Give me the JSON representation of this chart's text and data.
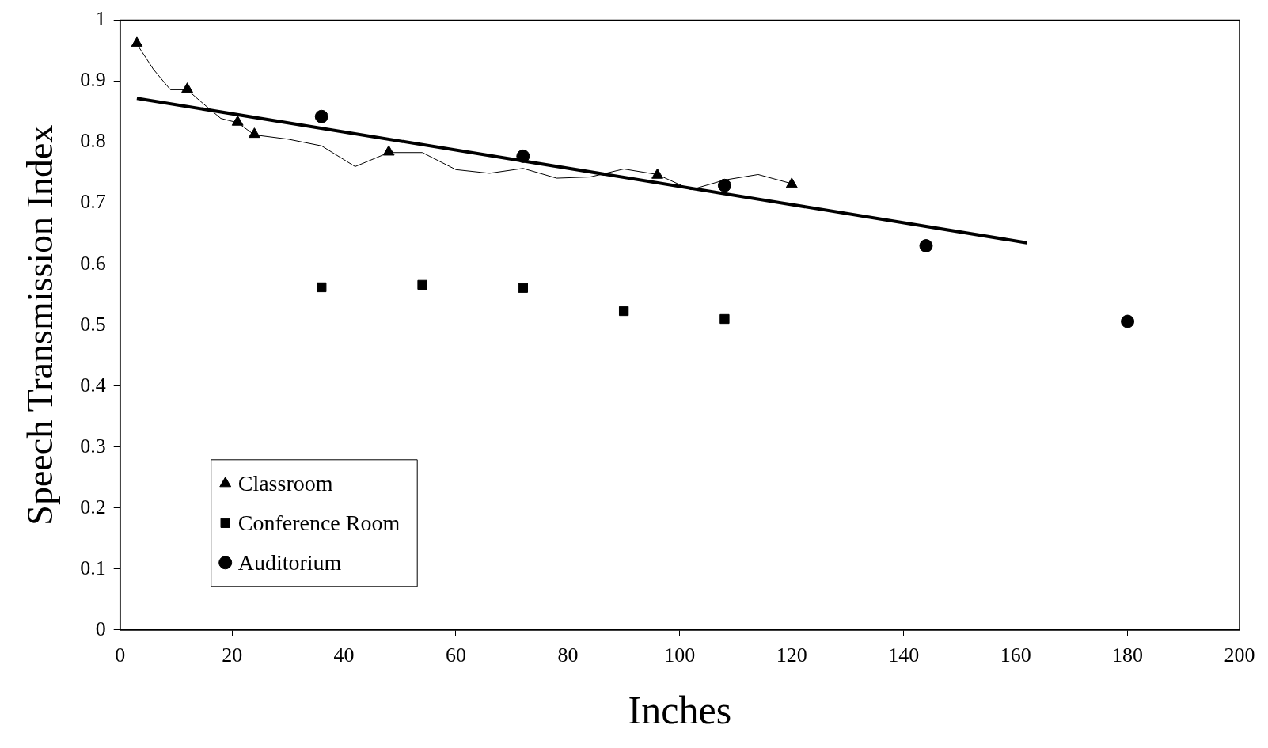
{
  "chart_data": {
    "type": "scatter",
    "xlabel": "Inches",
    "ylabel": "Speech Transmission Index",
    "xlim": [
      0,
      200
    ],
    "xticks": [
      0,
      20,
      40,
      60,
      80,
      100,
      120,
      140,
      160,
      180,
      200
    ],
    "ylim": [
      0,
      1
    ],
    "yticks": [
      0,
      0.1,
      0.2,
      0.3,
      0.4,
      0.5,
      0.6,
      0.7,
      0.8,
      0.9,
      1
    ],
    "grid": false,
    "legend": "bottom left",
    "series": [
      {
        "name": "Classroom",
        "color": "#000000",
        "marker": "triangle",
        "x": [
          3,
          12,
          21,
          24,
          48,
          96,
          120
        ],
        "values": [
          0.962,
          0.887,
          0.833,
          0.813,
          0.784,
          0.746,
          0.731
        ]
      },
      {
        "name": "Conference Room",
        "color": "#000000",
        "marker": "square",
        "x": [
          36,
          54,
          72,
          90,
          108
        ],
        "values": [
          0.562,
          0.566,
          0.561,
          0.523,
          0.51
        ]
      },
      {
        "name": "Auditorium",
        "color": "#000000",
        "marker": "circle",
        "x": [
          36,
          72,
          108,
          144,
          180
        ],
        "values": [
          0.842,
          0.777,
          0.729,
          0.63,
          0.506
        ]
      },
      {
        "type": "line",
        "color": "#000000",
        "marker": "none",
        "x": [
          3,
          6,
          9,
          12,
          15,
          18,
          21,
          24,
          30,
          36,
          42,
          48,
          54,
          60,
          66,
          72,
          78,
          84,
          90,
          96,
          102,
          108,
          114,
          120
        ],
        "values": [
          0.961,
          0.919,
          0.886,
          0.886,
          0.862,
          0.839,
          0.832,
          0.812,
          0.805,
          0.794,
          0.76,
          0.783,
          0.783,
          0.755,
          0.749,
          0.757,
          0.741,
          0.743,
          0.756,
          0.747,
          0.722,
          0.738,
          0.747,
          0.732
        ]
      },
      {
        "type": "line",
        "color": "#000000",
        "marker": "none",
        "x": [
          3,
          162
        ],
        "values": [
          0.872,
          0.635
        ]
      }
    ]
  }
}
